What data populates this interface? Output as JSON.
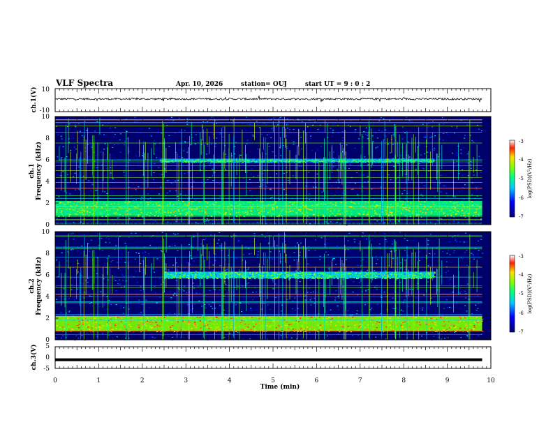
{
  "header": {
    "title": "VLF Spectra",
    "date": "Apr. 10, 2026",
    "station": "station= OUJ",
    "start": "start UT =  9 : 0 : 2"
  },
  "chart_data": [
    {
      "type": "line",
      "panel": "ch1-waveform",
      "ylabel": "ch.1(V)",
      "ylim": [
        -10,
        10
      ],
      "yticks": [
        "10",
        "-10"
      ],
      "x_range_min": [
        0,
        9.8
      ],
      "approx_level_V": 1
    },
    {
      "type": "heatmap",
      "panel": "ch1-spectrogram",
      "ylabel": "ch.1\nFrequency (kHz)",
      "ylabel_lines": [
        "ch.1",
        "Frequency (kHz)"
      ],
      "ylim": [
        0,
        10
      ],
      "yticks": [
        "0",
        "2",
        "4",
        "6",
        "8",
        "10"
      ],
      "x_range_min": [
        0,
        9.8
      ],
      "colorbar": {
        "label": "log(PSD)(V²/Hz)",
        "range": [
          -7,
          -3
        ],
        "ticks": [
          "-3",
          "-4",
          "-5",
          "-6",
          "-7"
        ]
      },
      "features": [
        {
          "name": "broadband band",
          "freq_kHz": [
            0.8,
            2.2
          ],
          "level": -4.5
        },
        {
          "name": "hiss band",
          "freq_kHz": [
            5.8,
            6.1
          ],
          "time_min": [
            2.4,
            8.7
          ],
          "level": -5.2
        }
      ]
    },
    {
      "type": "heatmap",
      "panel": "ch2-spectrogram",
      "ylabel": "ch.2\nFrequency (kHz)",
      "ylabel_lines": [
        "ch.2",
        "Frequency (kHz)"
      ],
      "ylim": [
        0,
        10
      ],
      "yticks": [
        "0",
        "2",
        "4",
        "6",
        "8",
        "10"
      ],
      "x_range_min": [
        0,
        9.8
      ],
      "colorbar": {
        "label": "log(PSD)(V²/Hz)",
        "range": [
          -7,
          -3
        ],
        "ticks": [
          "-3",
          "-4",
          "-5",
          "-6",
          "-7"
        ]
      },
      "features": [
        {
          "name": "broadband band",
          "freq_kHz": [
            0.8,
            2.2
          ],
          "level": -4.0
        },
        {
          "name": "hiss band",
          "freq_kHz": [
            5.7,
            6.3
          ],
          "time_min": [
            2.5,
            8.7
          ],
          "level": -5.0
        }
      ]
    },
    {
      "type": "line",
      "panel": "ch3-waveform",
      "ylabel": "ch.3(V)",
      "ylim": [
        -5,
        5
      ],
      "yticks": [
        "5",
        "0",
        "-5"
      ],
      "x_range_min": [
        0,
        9.8
      ],
      "approx_level_V": -1
    }
  ],
  "xaxis": {
    "label": "Time (min)",
    "range": [
      0,
      10
    ],
    "ticks": [
      "0",
      "1",
      "2",
      "3",
      "4",
      "5",
      "6",
      "7",
      "8",
      "9",
      "10"
    ]
  }
}
